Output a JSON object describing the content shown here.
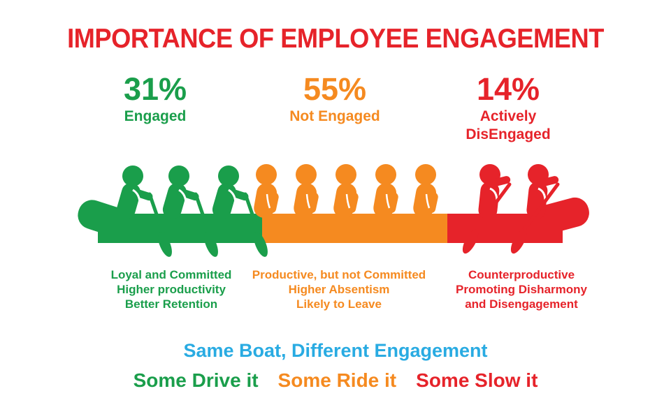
{
  "title": "IMPORTANCE OF EMPLOYEE ENGAGEMENT",
  "colors": {
    "green": "#1a9e4b",
    "orange": "#f58a20",
    "red": "#e6232a",
    "blue": "#29abe2"
  },
  "chart_data": {
    "type": "pictorial-bar",
    "title": "IMPORTANCE OF EMPLOYEE ENGAGEMENT",
    "categories": [
      "Engaged",
      "Not Engaged",
      "Actively DisEngaged"
    ],
    "values": [
      31,
      55,
      14
    ],
    "segments": [
      {
        "id": "engaged",
        "percent": "31%",
        "value": 31,
        "label": "Engaged",
        "color": "#1a9e4b",
        "figure_count": 3,
        "pose": "rowing-forward",
        "description": [
          "Loyal and Committed",
          "Higher productivity",
          "Better Retention"
        ]
      },
      {
        "id": "not-engaged",
        "percent": "55%",
        "value": 55,
        "label": "Not Engaged",
        "color": "#f58a20",
        "figure_count": 5,
        "pose": "sitting",
        "description": [
          "Productive, but not Committed",
          "Higher Absentism",
          "Likely to Leave"
        ]
      },
      {
        "id": "actively-disengaged",
        "percent": "14%",
        "value": 14,
        "label": "Actively\nDisEngaged",
        "color": "#e6232a",
        "figure_count": 2,
        "pose": "rowing-backward",
        "description": [
          "Counterproductive",
          "Promoting Disharmony",
          "and Disengagement"
        ]
      }
    ],
    "footer_heading": "Same Boat, Different Engagement",
    "footer_phrases": [
      {
        "text": "Some Drive it",
        "color": "#1a9e4b"
      },
      {
        "text": "Some Ride it",
        "color": "#f58a20"
      },
      {
        "text": "Some Slow it",
        "color": "#e6232a"
      }
    ]
  }
}
